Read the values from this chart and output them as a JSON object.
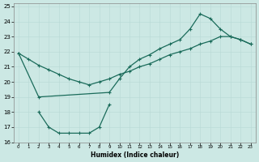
{
  "xlabel": "Humidex (Indice chaleur)",
  "xlim": [
    -0.5,
    23.5
  ],
  "ylim": [
    16,
    25.2
  ],
  "xticks": [
    0,
    1,
    2,
    3,
    4,
    5,
    6,
    7,
    8,
    9,
    10,
    11,
    12,
    13,
    14,
    15,
    16,
    17,
    18,
    19,
    20,
    21,
    22,
    23
  ],
  "yticks": [
    16,
    17,
    18,
    19,
    20,
    21,
    22,
    23,
    24,
    25
  ],
  "bg_color": "#cce8e4",
  "line_color": "#1a6b5a",
  "line1_x": [
    0,
    1,
    2,
    3,
    4,
    5,
    6,
    7,
    8,
    9,
    10,
    11,
    12,
    13,
    14,
    15,
    16,
    17,
    18,
    19,
    20,
    21,
    22,
    23
  ],
  "line1_y": [
    21.9,
    21.5,
    21.1,
    20.8,
    20.5,
    20.2,
    20.0,
    19.8,
    20.0,
    20.2,
    20.5,
    20.7,
    21.0,
    21.2,
    21.5,
    21.8,
    22.0,
    22.2,
    22.5,
    22.7,
    23.0,
    23.0,
    22.8,
    22.5
  ],
  "line2_x": [
    0,
    2,
    9,
    10,
    11,
    12,
    13,
    14,
    15,
    16,
    17,
    18,
    19,
    20,
    21,
    22,
    23
  ],
  "line2_y": [
    21.9,
    19.0,
    19.3,
    20.2,
    21.0,
    21.5,
    21.8,
    22.2,
    22.5,
    22.8,
    23.5,
    24.5,
    24.2,
    23.5,
    23.0,
    22.8,
    22.5
  ],
  "line3_x": [
    2,
    3,
    4,
    5,
    6,
    7,
    8,
    9
  ],
  "line3_y": [
    18.0,
    17.0,
    16.6,
    16.6,
    16.6,
    16.6,
    17.0,
    18.5
  ]
}
